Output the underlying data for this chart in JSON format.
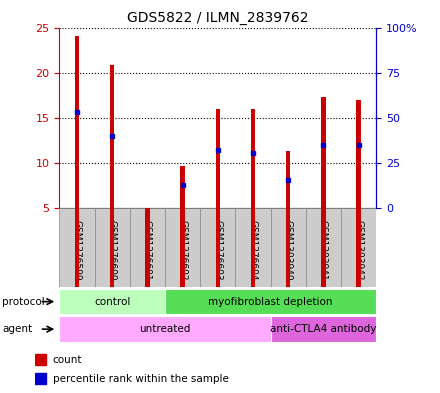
{
  "title": "GDS5822 / ILMN_2839762",
  "samples": [
    "GSM1276599",
    "GSM1276600",
    "GSM1276601",
    "GSM1276602",
    "GSM1276603",
    "GSM1276604",
    "GSM1303940",
    "GSM1303941",
    "GSM1303942"
  ],
  "counts": [
    24.1,
    20.8,
    5.05,
    9.7,
    16.0,
    16.0,
    11.3,
    17.3,
    17.0
  ],
  "percentile_rank_left_axis": [
    15.6,
    13.0,
    null,
    7.6,
    11.5,
    11.1,
    8.1,
    12.0,
    12.0
  ],
  "ymin": 5,
  "ymax": 25,
  "yticks_left": [
    5,
    10,
    15,
    20,
    25
  ],
  "yticks_right_labels": [
    "0",
    "25",
    "50",
    "75",
    "100%"
  ],
  "bar_color": "#cc0000",
  "percentile_color": "#0000cc",
  "bar_width": 0.12,
  "protocol_groups": [
    {
      "label": "control",
      "start": 0,
      "end": 3,
      "color": "#bbffbb"
    },
    {
      "label": "myofibroblast depletion",
      "start": 3,
      "end": 9,
      "color": "#55dd55"
    }
  ],
  "agent_groups": [
    {
      "label": "untreated",
      "start": 0,
      "end": 6,
      "color": "#ffaaff"
    },
    {
      "label": "anti-CTLA4 antibody",
      "start": 6,
      "end": 9,
      "color": "#dd66dd"
    }
  ],
  "left_axis_color": "#cc0000",
  "right_axis_color": "#0000cc",
  "plot_bg_color": "#ffffff",
  "label_bg_color": "#cccccc",
  "label_edge_color": "#888888"
}
